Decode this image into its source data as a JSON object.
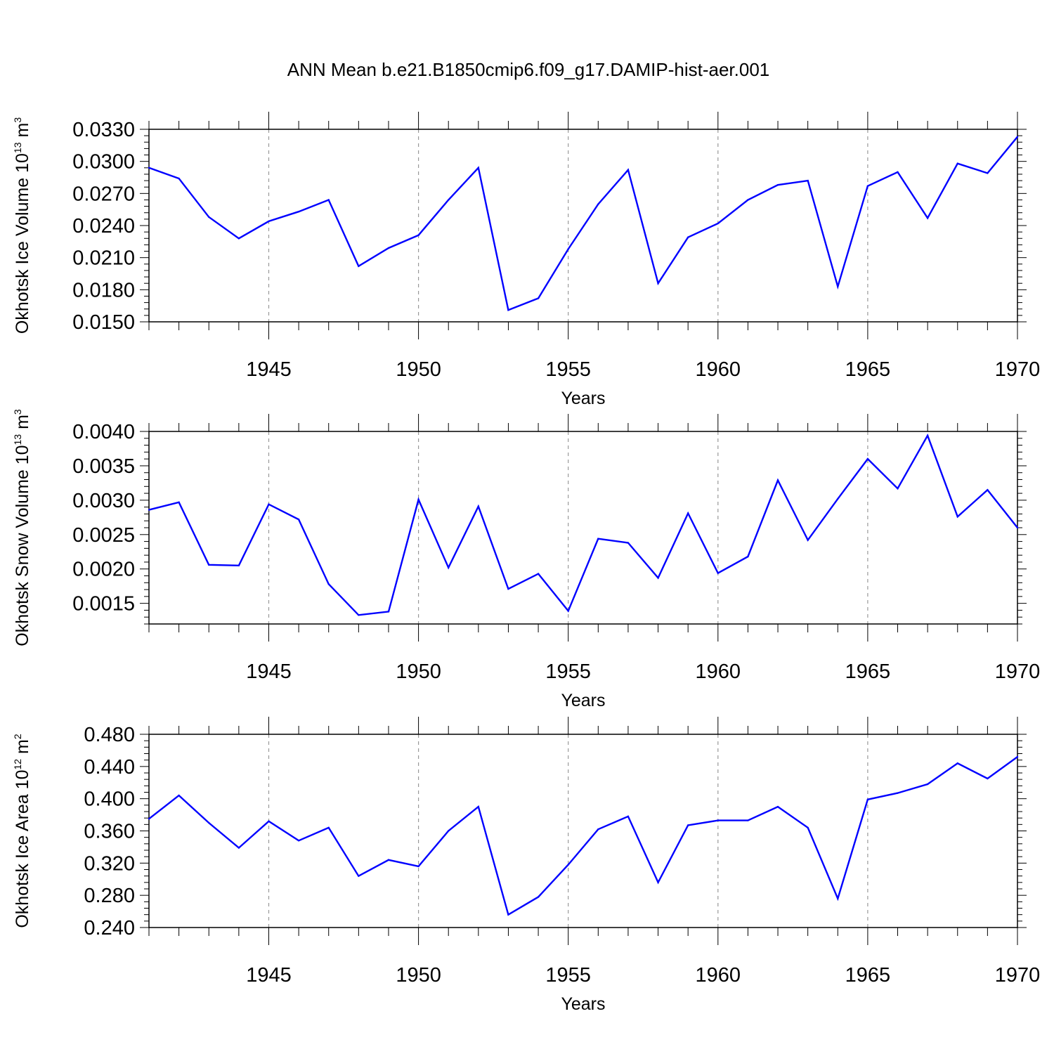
{
  "title": "ANN Mean b.e21.B1850cmip6.f09_g17.DAMIP-hist-aer.001",
  "line_color": "#0000ff",
  "grid_color": "#999999",
  "chart_data": [
    {
      "type": "line",
      "ylabel": "Okhotsk Ice Volume 10",
      "ylabel_exp": "13",
      "ylabel_unit": "m",
      "ylabel_unit_exp": "3",
      "xlabel": "Years",
      "xlim": [
        1941,
        1970
      ],
      "ylim": [
        0.015,
        0.033
      ],
      "yticks": [
        "0.0150",
        "0.0180",
        "0.0210",
        "0.0240",
        "0.0270",
        "0.0300",
        "0.0330"
      ],
      "xticks": [
        "1945",
        "1950",
        "1955",
        "1960",
        "1965",
        "1970"
      ],
      "x": [
        1941,
        1942,
        1943,
        1944,
        1945,
        1946,
        1947,
        1948,
        1949,
        1950,
        1951,
        1952,
        1953,
        1954,
        1955,
        1956,
        1957,
        1958,
        1959,
        1960,
        1961,
        1962,
        1963,
        1964,
        1965,
        1966,
        1967,
        1968,
        1969,
        1970
      ],
      "values": [
        0.0294,
        0.0284,
        0.0248,
        0.0228,
        0.0244,
        0.0253,
        0.0264,
        0.0202,
        0.0219,
        0.0231,
        0.0264,
        0.0294,
        0.0161,
        0.0172,
        0.0218,
        0.026,
        0.0292,
        0.0186,
        0.0229,
        0.0242,
        0.0264,
        0.0278,
        0.0282,
        0.0183,
        0.0277,
        0.029,
        0.0247,
        0.0298,
        0.0289,
        0.0323
      ]
    },
    {
      "type": "line",
      "ylabel": "Okhotsk Snow Volume 10",
      "ylabel_exp": "13",
      "ylabel_unit": "m",
      "ylabel_unit_exp": "3",
      "xlabel": "Years",
      "xlim": [
        1941,
        1970
      ],
      "ylim": [
        0.0012,
        0.004
      ],
      "yticks": [
        "0.0015",
        "0.0020",
        "0.0025",
        "0.0030",
        "0.0035",
        "0.0040"
      ],
      "xticks": [
        "1945",
        "1950",
        "1955",
        "1960",
        "1965",
        "1970"
      ],
      "x": [
        1941,
        1942,
        1943,
        1944,
        1945,
        1946,
        1947,
        1948,
        1949,
        1950,
        1951,
        1952,
        1953,
        1954,
        1955,
        1956,
        1957,
        1958,
        1959,
        1960,
        1961,
        1962,
        1963,
        1964,
        1965,
        1966,
        1967,
        1968,
        1969,
        1970
      ],
      "values": [
        0.00286,
        0.00297,
        0.00206,
        0.00205,
        0.00294,
        0.00272,
        0.00178,
        0.00133,
        0.00138,
        0.00301,
        0.00202,
        0.00291,
        0.00171,
        0.00193,
        0.00139,
        0.00244,
        0.00238,
        0.00187,
        0.00281,
        0.00194,
        0.00218,
        0.00329,
        0.00242,
        0.00302,
        0.0036,
        0.00317,
        0.00394,
        0.00276,
        0.00315,
        0.0026
      ]
    },
    {
      "type": "line",
      "ylabel": "Okhotsk Ice Area 10",
      "ylabel_exp": "12",
      "ylabel_unit": "m",
      "ylabel_unit_exp": "2",
      "xlabel": "Years",
      "xlim": [
        1941,
        1970
      ],
      "ylim": [
        0.24,
        0.48
      ],
      "yticks": [
        "0.240",
        "0.280",
        "0.320",
        "0.360",
        "0.400",
        "0.440",
        "0.480"
      ],
      "xticks": [
        "1945",
        "1950",
        "1955",
        "1960",
        "1965",
        "1970"
      ],
      "x": [
        1941,
        1942,
        1943,
        1944,
        1945,
        1946,
        1947,
        1948,
        1949,
        1950,
        1951,
        1952,
        1953,
        1954,
        1955,
        1956,
        1957,
        1958,
        1959,
        1960,
        1961,
        1962,
        1963,
        1964,
        1965,
        1966,
        1967,
        1968,
        1969,
        1970
      ],
      "values": [
        0.375,
        0.404,
        0.37,
        0.339,
        0.372,
        0.348,
        0.364,
        0.304,
        0.324,
        0.316,
        0.36,
        0.39,
        0.256,
        0.278,
        0.318,
        0.362,
        0.378,
        0.296,
        0.367,
        0.373,
        0.373,
        0.39,
        0.364,
        0.276,
        0.399,
        0.407,
        0.418,
        0.444,
        0.425,
        0.452
      ]
    }
  ]
}
